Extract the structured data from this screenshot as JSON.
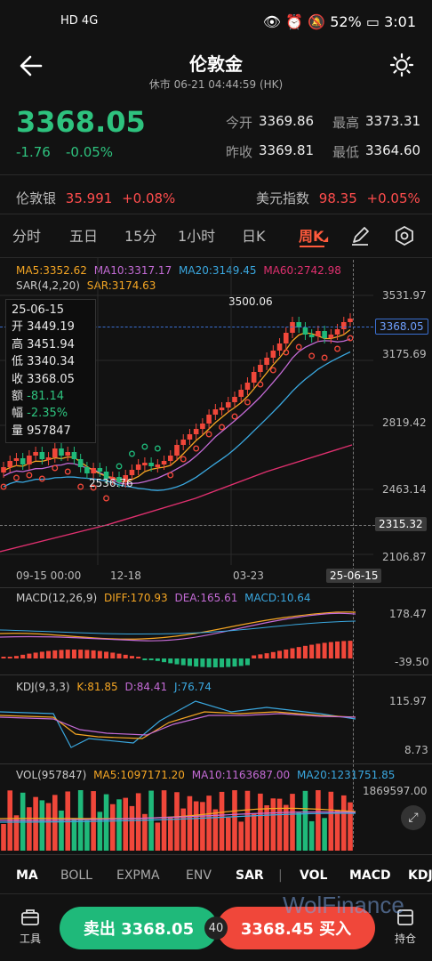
{
  "status": {
    "net": "HD 4G",
    "battery": "52%",
    "time": "3:01"
  },
  "header": {
    "title": "伦敦金",
    "subtitle": "休市  06-21 04:44:59 (HK)"
  },
  "quote": {
    "price": "3368.05",
    "change": "-1.76",
    "change_pct": "-0.05%",
    "open_label": "今开",
    "open": "3369.86",
    "high_label": "最高",
    "high": "3373.31",
    "prev_label": "昨收",
    "prev": "3369.81",
    "low_label": "最低",
    "low": "3364.60"
  },
  "related": {
    "silver_label": "伦敦银",
    "silver": "35.991",
    "silver_pct": "+0.08%",
    "usd_label": "美元指数",
    "usd": "98.35",
    "usd_pct": "+0.05%"
  },
  "tabs": [
    "分时",
    "五日",
    "15分",
    "1小时",
    "日K",
    "周K"
  ],
  "main_legend": {
    "ma5": "MA5:3352.62",
    "ma10": "MA10:3317.17",
    "ma20": "MA20:3149.45",
    "ma60": "MA60:2742.98",
    "sar": "SAR(4,2,20)",
    "sar_val": "SAR:3174.63"
  },
  "axis": {
    "y1": "3531.97",
    "y2": "3175.69",
    "y3": "2819.42",
    "y4": "2463.14",
    "y5": "2106.87",
    "last": "3368.05",
    "cursor": "2315.32",
    "hi_mark": "3500.06",
    "lo_mark": "2536.76",
    "x1": "09-15 00:00",
    "x2": "12-18",
    "x3": "03-23",
    "xcur": "25-06-15"
  },
  "ohlc": {
    "date": "25-06-15",
    "open_l": "开",
    "open": "3449.19",
    "high_l": "高",
    "high": "3451.94",
    "low_l": "低",
    "low": "3340.34",
    "close_l": "收",
    "close": "3368.05",
    "amt_l": "额",
    "amt": "-81.14",
    "pct_l": "幅",
    "pct": "-2.35%",
    "vol_l": "量",
    "vol": "957847"
  },
  "macd": {
    "label": "MACD(12,26,9)",
    "diff": "DIFF:170.93",
    "dea": "DEA:165.61",
    "macd": "MACD:10.64",
    "ytop": "178.47",
    "ybot": "-39.50"
  },
  "kdj": {
    "label": "KDJ(9,3,3)",
    "k": "K:81.85",
    "d": "D:84.41",
    "j": "J:76.74",
    "ytop": "115.97",
    "ybot": "8.73"
  },
  "vol": {
    "label": "VOL(957847)",
    "ma5": "MA5:1097171.20",
    "ma10": "MA10:1163687.00",
    "ma20": "MA20:1231751.85",
    "ytop": "1869597.00"
  },
  "indicators": [
    "MA",
    "BOLL",
    "EXPMA",
    "ENV",
    "SAR",
    "|",
    "VOL",
    "MACD",
    "KDJ"
  ],
  "bottom": {
    "tools": "工具",
    "sell": "卖出 3368.05",
    "spread": "40",
    "buy": "3368.45 买入",
    "position": "持仓"
  },
  "watermark": "WolFinance",
  "colors": {
    "up": "#f0473a",
    "down": "#1fb97a",
    "accent": "#ff5a3c",
    "ma5": "#f5a623",
    "ma10": "#c46bd6",
    "ma20": "#3aa8e0",
    "ma60": "#e0306f"
  }
}
